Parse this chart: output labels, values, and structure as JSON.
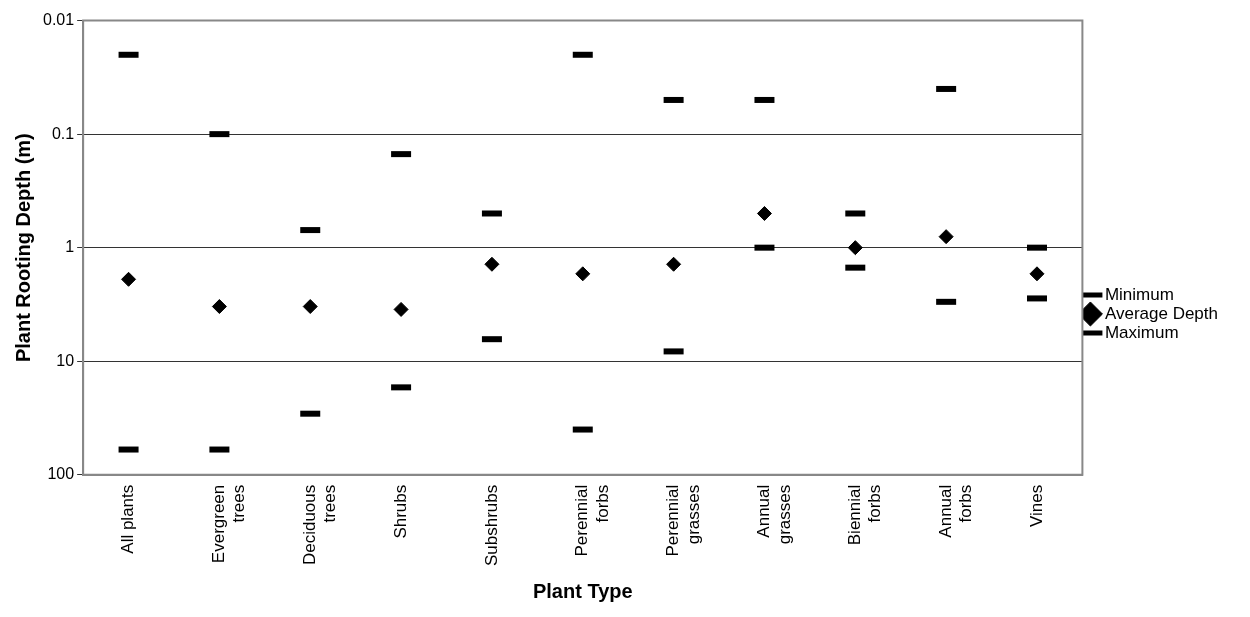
{
  "chart_data": {
    "type": "scatter",
    "xlabel": "Plant Type",
    "ylabel": "Plant Rooting Depth (m)",
    "categories": [
      "All plants",
      "Evergreen trees",
      "Deciduous trees",
      "Shrubs",
      "Subshrubs",
      "Perennial forbs",
      "Perennial grasses",
      "Annual grasses",
      "Biennial forbs",
      "Annual forbs",
      "Vines"
    ],
    "series": [
      {
        "name": "Minimum",
        "color": "#000000",
        "values": [
          0.02,
          0.1,
          0.7,
          0.15,
          0.5,
          0.02,
          0.05,
          0.05,
          0.5,
          0.04,
          1
        ]
      },
      {
        "name": "Average Depth",
        "color": "#000000",
        "marker": "diamond",
        "values": [
          1.9,
          3.3,
          3.3,
          3.5,
          1.4,
          1.7,
          1.4,
          0.5,
          1,
          0.8,
          1.7
        ]
      },
      {
        "name": "Maximum",
        "color": "#000000",
        "values": [
          60,
          60,
          29,
          17,
          6.4,
          40,
          8.2,
          1,
          1.5,
          3,
          2.8
        ]
      }
    ],
    "log": "y",
    "ylim": [
      100,
      0.01
    ],
    "yticks": [
      0.01,
      0.1,
      1,
      10,
      100
    ],
    "grid": "y",
    "legend": "right"
  }
}
